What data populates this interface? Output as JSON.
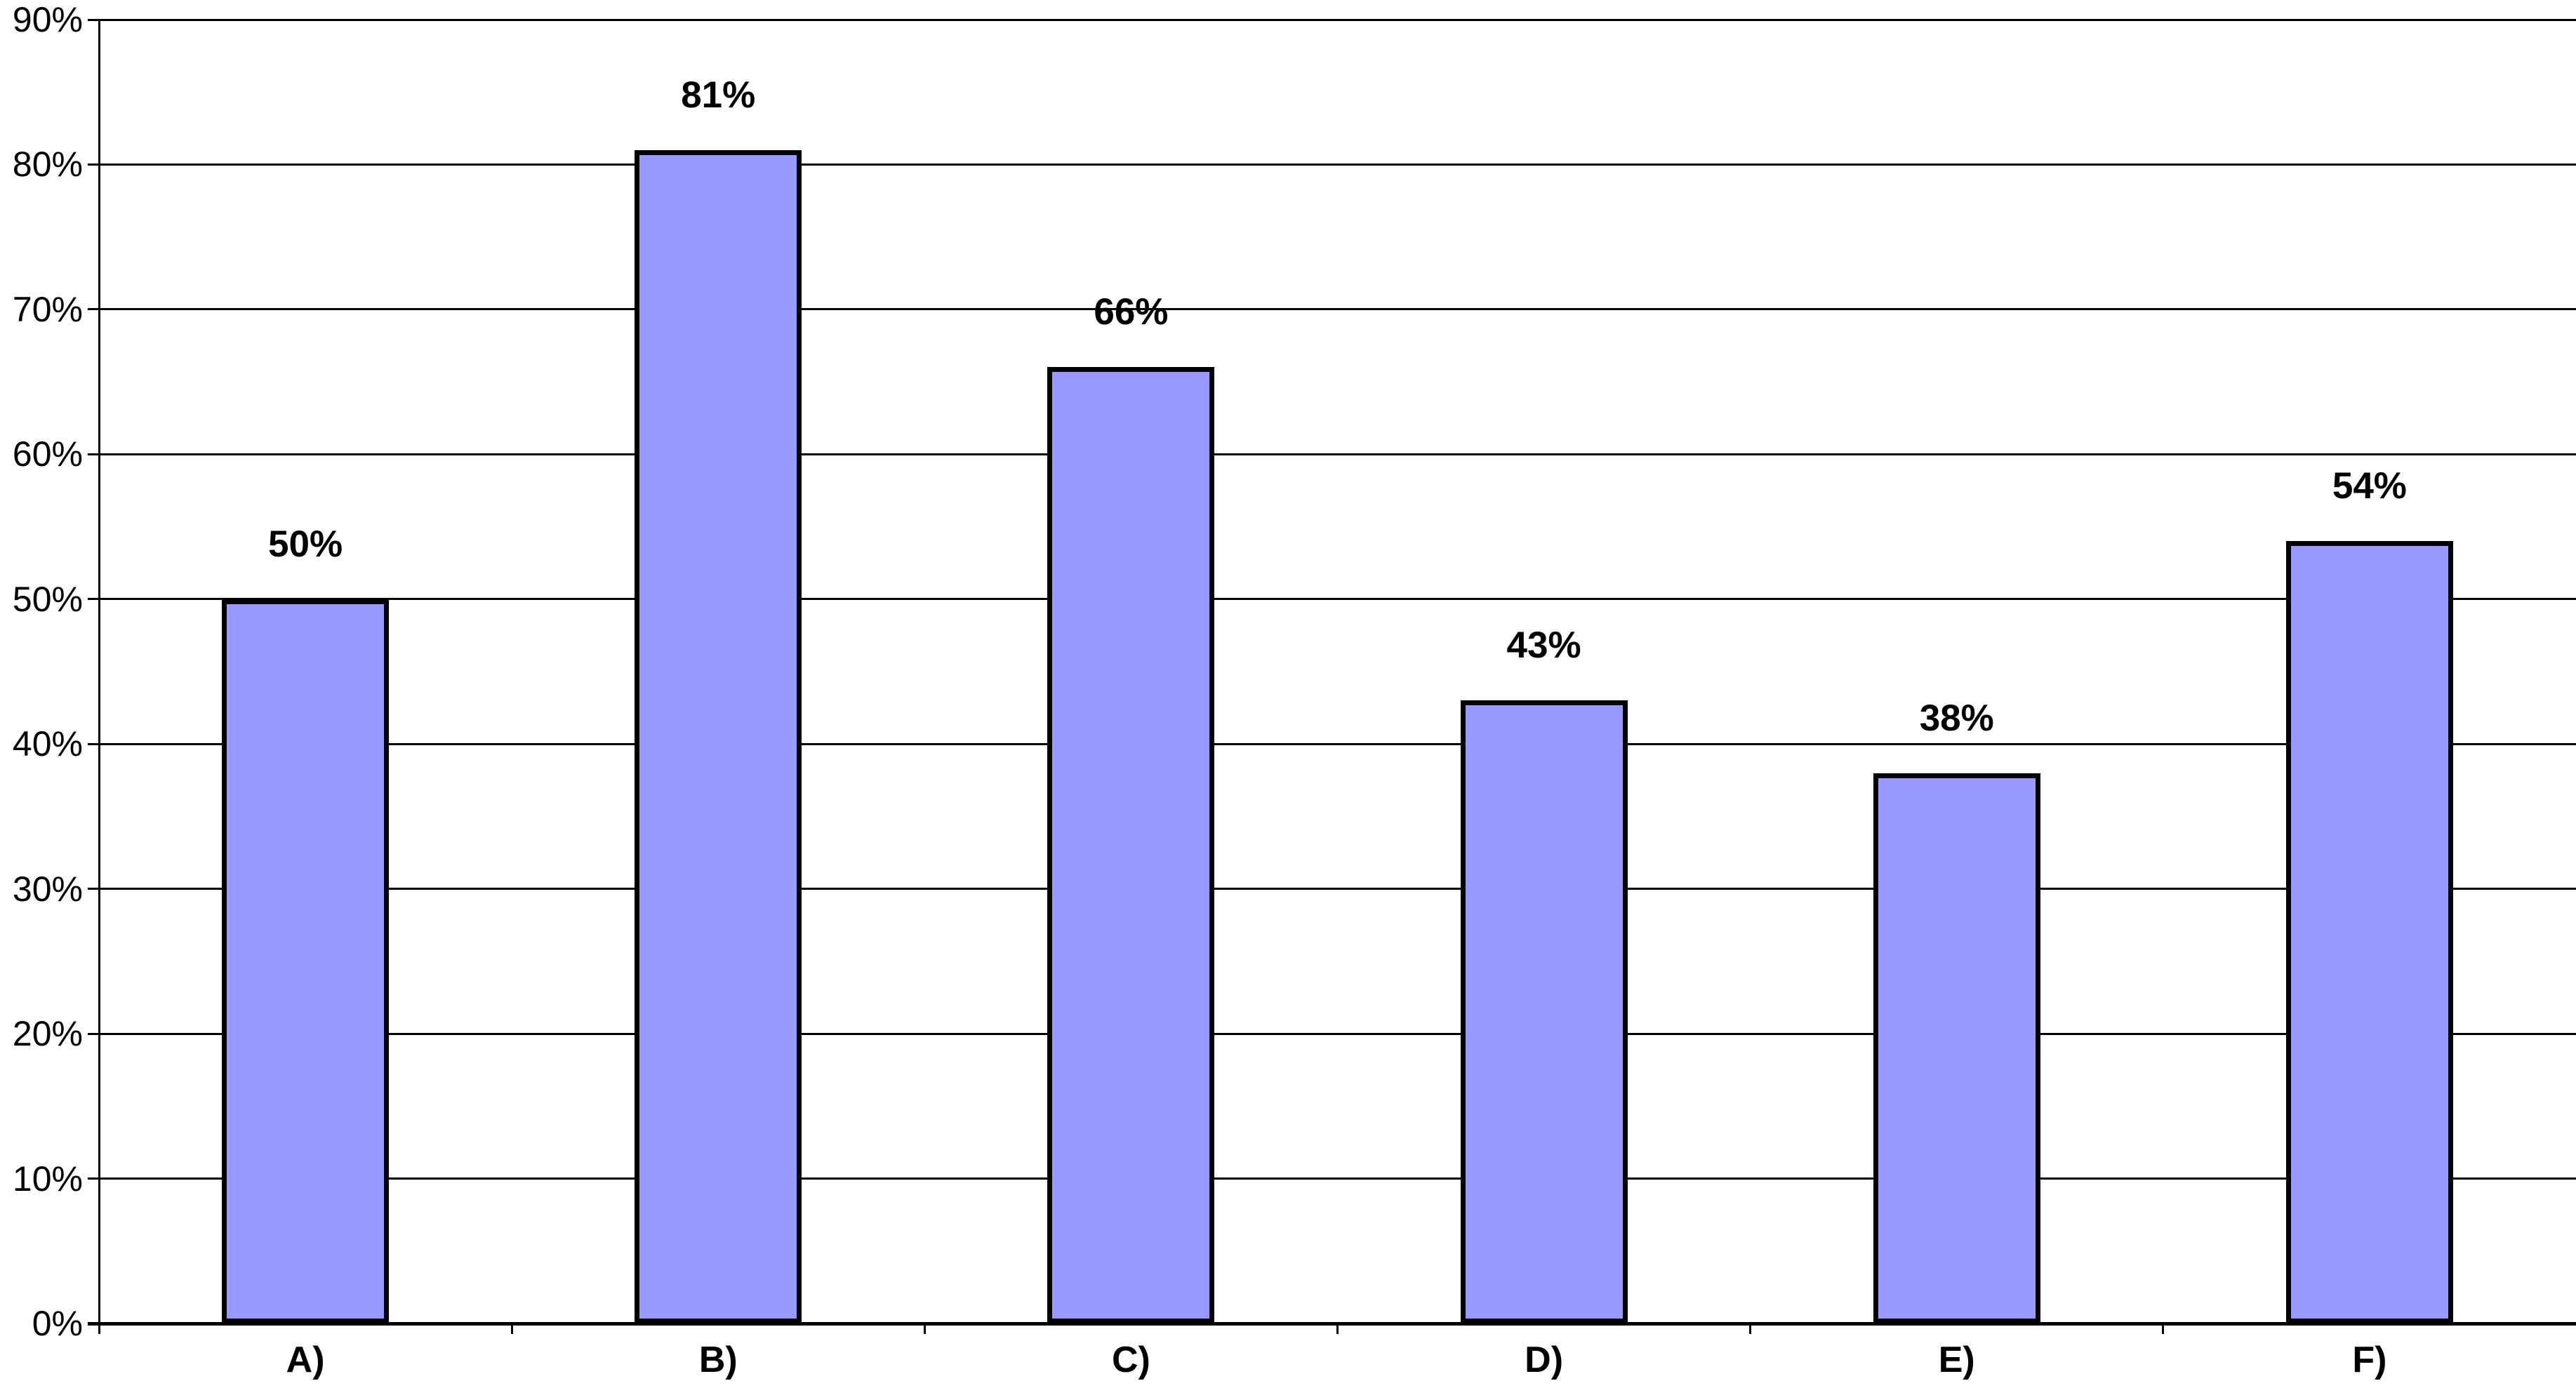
{
  "chart_data": {
    "type": "bar",
    "title": "",
    "xlabel": "",
    "ylabel": "",
    "categories": [
      "A)",
      "B)",
      "C)",
      "D)",
      "E)",
      "F)"
    ],
    "values": [
      50,
      81,
      66,
      43,
      38,
      54
    ],
    "data_labels": [
      "50%",
      "81%",
      "66%",
      "43%",
      "38%",
      "54%"
    ],
    "ylim": [
      0,
      90
    ],
    "ytick_step": 10,
    "ytick_labels": [
      "0%",
      "10%",
      "20%",
      "30%",
      "40%",
      "50%",
      "60%",
      "70%",
      "80%",
      "90%"
    ],
    "grid": true,
    "legend": null,
    "colors": {
      "bar_fill": "#9999FF",
      "bar_border": "#000000",
      "gridline": "#000000",
      "axis": "#000000",
      "background": "#FFFFFF",
      "text": "#000000"
    }
  }
}
